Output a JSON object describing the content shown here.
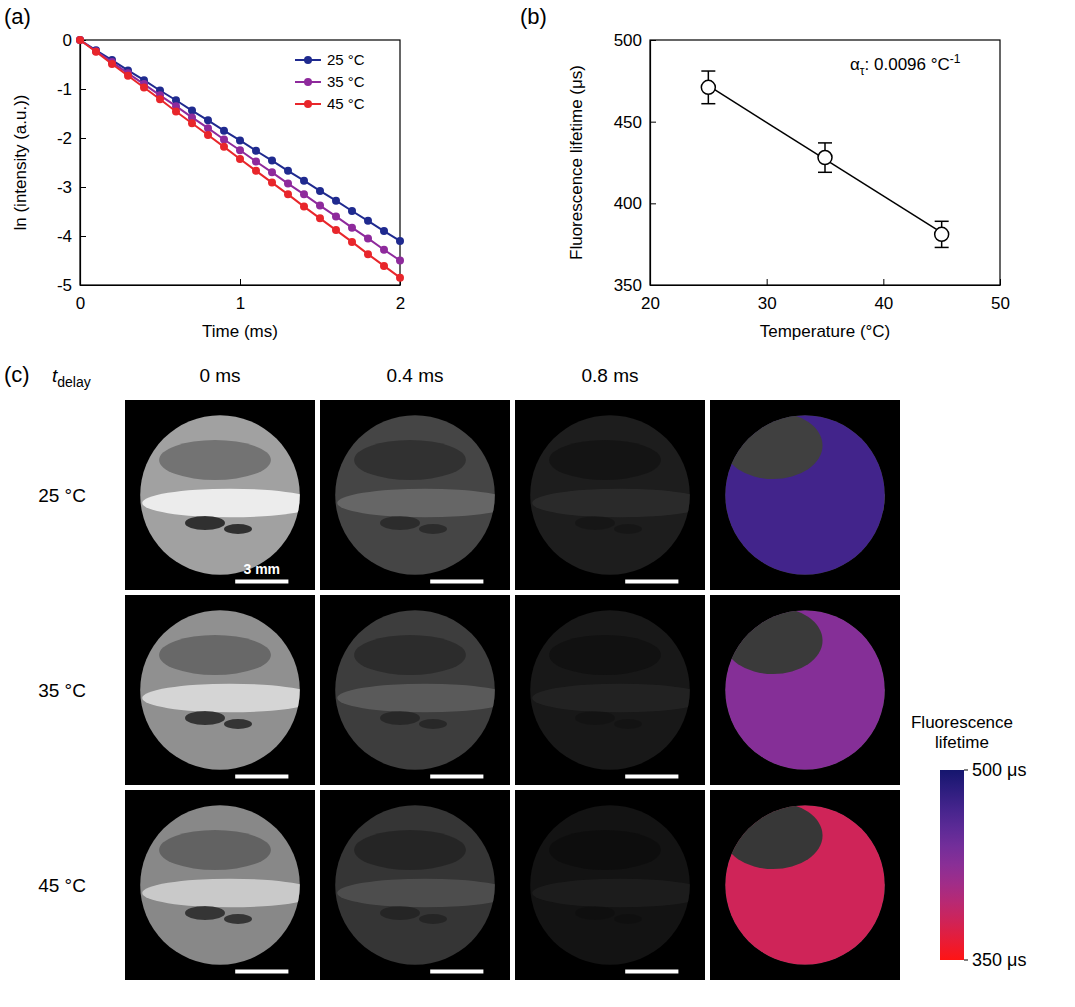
{
  "chart_data": [
    {
      "type": "line",
      "title": "(a)",
      "x_label": "Time (ms)",
      "y_label": "ln (intensity (a.u.))",
      "x": [
        0,
        0.1,
        0.2,
        0.3,
        0.4,
        0.5,
        0.6,
        0.7,
        0.8,
        0.9,
        1.0,
        1.1,
        1.2,
        1.3,
        1.4,
        1.5,
        1.6,
        1.7,
        1.8,
        1.9,
        2.0
      ],
      "xlim": [
        0,
        2
      ],
      "xticks": [
        0,
        1,
        2
      ],
      "ylim": [
        -5,
        0
      ],
      "yticks": [
        0,
        -1,
        -2,
        -3,
        -4,
        -5
      ],
      "legend": "upper right",
      "marker": "circle",
      "line_style": "solid",
      "series": [
        {
          "name": "25 °C",
          "color": "#1f2a8f",
          "values": [
            0,
            -0.21,
            -0.41,
            -0.62,
            -0.82,
            -1.03,
            -1.23,
            -1.44,
            -1.64,
            -1.85,
            -2.05,
            -2.26,
            -2.46,
            -2.67,
            -2.87,
            -3.08,
            -3.28,
            -3.49,
            -3.69,
            -3.9,
            -4.1
          ]
        },
        {
          "name": "35 °C",
          "color": "#8e2a9c",
          "values": [
            0,
            -0.23,
            -0.45,
            -0.68,
            -0.9,
            -1.13,
            -1.35,
            -1.58,
            -1.8,
            -2.03,
            -2.25,
            -2.48,
            -2.7,
            -2.93,
            -3.15,
            -3.38,
            -3.6,
            -3.83,
            -4.05,
            -4.28,
            -4.5
          ]
        },
        {
          "name": "45 °C",
          "color": "#e8262b",
          "values": [
            0,
            -0.24,
            -0.49,
            -0.73,
            -0.97,
            -1.21,
            -1.46,
            -1.7,
            -1.94,
            -2.18,
            -2.43,
            -2.67,
            -2.91,
            -3.15,
            -3.4,
            -3.64,
            -3.88,
            -4.12,
            -4.37,
            -4.61,
            -4.85
          ]
        }
      ]
    },
    {
      "type": "scatter",
      "title": "(b)",
      "x_label": "Temperature (°C)",
      "y_label": "Fluorescence lifetime (μs)",
      "x": [
        25,
        35,
        45
      ],
      "values": [
        471,
        428,
        381
      ],
      "errors": [
        10,
        9,
        8
      ],
      "color": "#000000",
      "marker": "open circle",
      "xlim": [
        20,
        50
      ],
      "xticks": [
        20,
        30,
        40,
        50
      ],
      "ylim": [
        350,
        500
      ],
      "yticks": [
        350,
        400,
        450,
        500
      ],
      "fit": {
        "x": [
          25,
          45
        ],
        "values": [
          472,
          382
        ]
      },
      "annotation": {
        "symbol": "α",
        "subscript": "τ",
        "text": ": 0.0096 °C",
        "superscript": "-1"
      }
    }
  ],
  "panel_c": {
    "title": "(c)",
    "delay_label": {
      "symbol": "t",
      "subscript": "delay"
    },
    "delays": [
      "0 ms",
      "0.4 ms",
      "0.8 ms"
    ],
    "temperatures": [
      "25 °C",
      "35 °C",
      "45 °C"
    ],
    "image_brightness": [
      [
        1.0,
        0.43,
        0.18
      ],
      [
        0.9,
        0.38,
        0.15
      ],
      [
        0.85,
        0.33,
        0.12
      ]
    ],
    "lifetime_maps": [
      471,
      428,
      381
    ],
    "scale_bar": "3 mm",
    "colorbar": {
      "title": "Fluorescence lifetime",
      "range": [
        350,
        500
      ],
      "ticks": [
        {
          "value": 500,
          "label": "500 μs"
        },
        {
          "value": 350,
          "label": "350 μs"
        }
      ]
    }
  }
}
